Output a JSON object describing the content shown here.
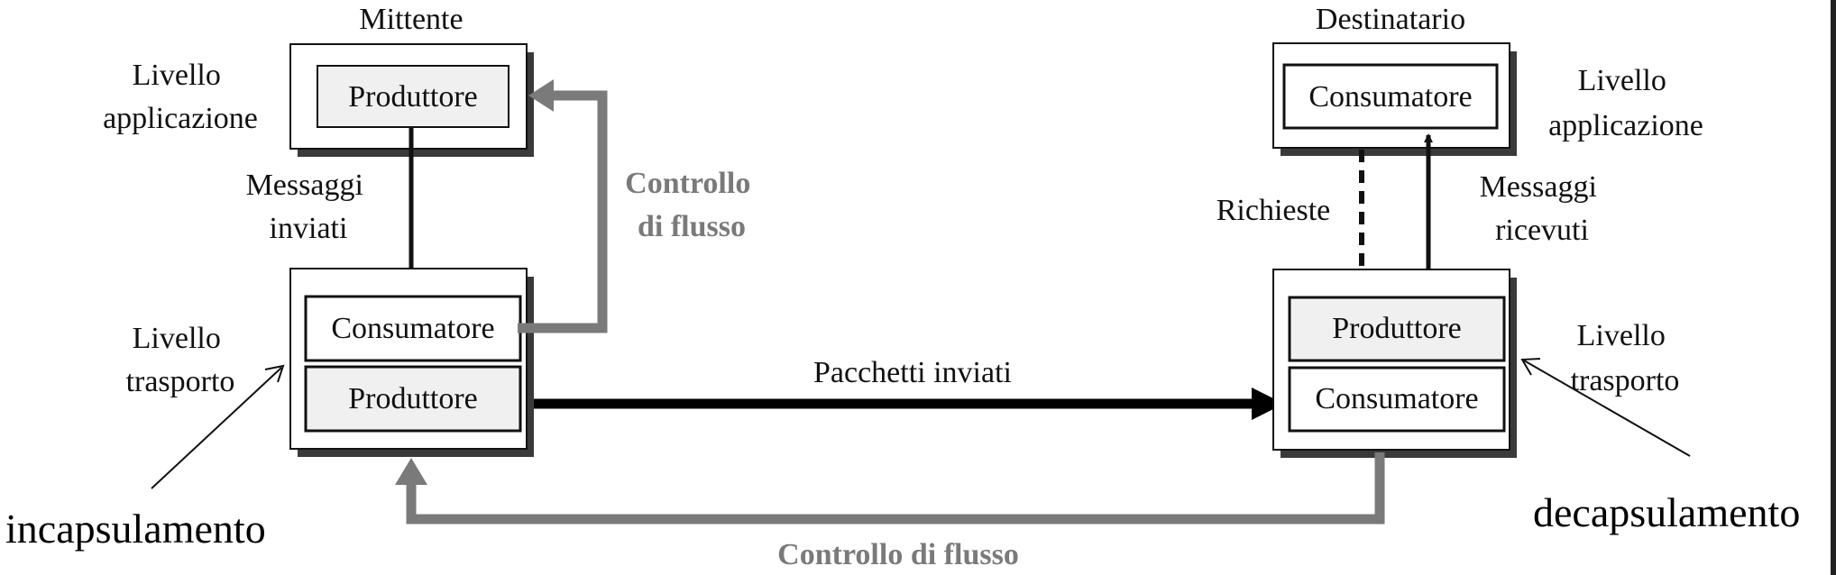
{
  "sender": {
    "title": "Mittente",
    "app_layer_label": [
      "Livello",
      "applicazione"
    ],
    "transport_layer_label": [
      "Livello",
      "trasporto"
    ],
    "app_box": "Produttore",
    "transport_top_box": "Consumatore",
    "transport_bottom_box": "Produttore",
    "messages_label": [
      "Messaggi",
      "inviati"
    ],
    "flow_control_label": [
      "Controllo",
      "di flusso"
    ]
  },
  "receiver": {
    "title": "Destinatario",
    "app_layer_label": [
      "Livello",
      "applicazione"
    ],
    "transport_layer_label": [
      "Livello",
      "trasporto"
    ],
    "app_box": "Consumatore",
    "transport_top_box": "Produttore",
    "transport_bottom_box": "Consumatore",
    "requests_label": "Richieste",
    "messages_label": [
      "Messaggi",
      "ricevuti"
    ]
  },
  "packets_label": "Pacchetti inviati",
  "bottom_flow_control_label": "Controllo di flusso",
  "encapsulation_label": "incapsulamento",
  "decapsulation_label": "decapsulamento",
  "colors": {
    "ink": "#111111",
    "gray_arrow": "#7a7a7a",
    "box_fill": "#f0f0f0",
    "shadow": "#3a3a3a"
  }
}
